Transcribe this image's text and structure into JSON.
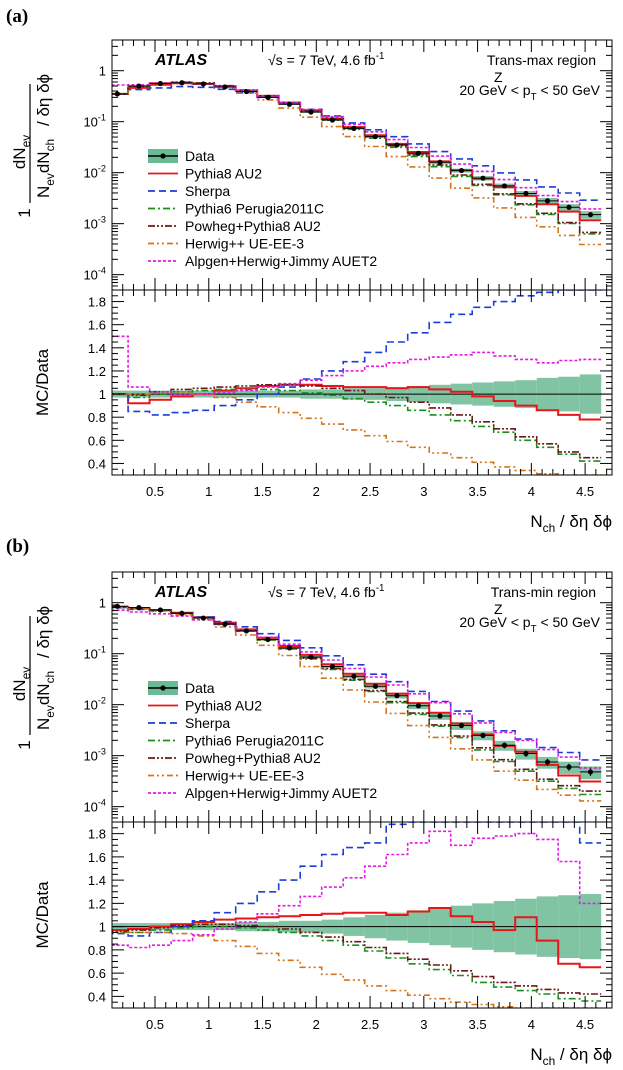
{
  "chart_data": [
    {
      "type": "line",
      "panel": "(a)",
      "experiment": "ATLAS",
      "energy_label": "√s = 7 TeV, 4.6 fb",
      "energy_sup": "-1",
      "region": "Trans-max region",
      "pt_range": "20 GeV < p",
      "pt_range_sup": "Z",
      "pt_range_sub": "T",
      "pt_range_tail": " < 50 GeV",
      "xlabel": "N",
      "xlabel_sub": "ch",
      "xlabel_tail": " / δη δϕ",
      "ylabel_top": "dN",
      "ylabel_top_sub": "ev",
      "ylabel_bottom": "N",
      "ylabel_bottom_sub": "ev",
      "ylabel_bottom_mid": "dN",
      "ylabel_bottom_sub2": "ch",
      "ylabel_bottom_tail": " / δη δϕ",
      "ylabel_one": "1",
      "ratio_ylabel": "MC/Data",
      "xlim": [
        0.1,
        4.75
      ],
      "ylim": [
        5e-05,
        4
      ],
      "yscale": "log",
      "ratio_ylim": [
        0.3,
        1.9
      ],
      "x_ticks": [
        "0.5",
        "1",
        "1.5",
        "2",
        "2.5",
        "3",
        "3.5",
        "4",
        "4.5"
      ],
      "y_ticks": [
        "10",
        "10",
        "10",
        "10",
        "1"
      ],
      "y_tick_sups": [
        "-4",
        "-3",
        "-2",
        "-1",
        ""
      ],
      "ratio_ticks": [
        "0.4",
        "0.6",
        "0.8",
        "1",
        "1.2",
        "1.4",
        "1.6",
        "1.8"
      ],
      "legend_position": "center-left",
      "x": [
        0.15,
        0.35,
        0.55,
        0.75,
        0.95,
        1.15,
        1.35,
        1.55,
        1.75,
        1.95,
        2.15,
        2.35,
        2.55,
        2.75,
        2.95,
        3.15,
        3.35,
        3.55,
        3.75,
        3.95,
        4.15,
        4.35,
        4.55
      ],
      "series": [
        {
          "name": "Data",
          "color": "#000000",
          "band": "#6aba94",
          "values": [
            0.35,
            0.5,
            0.56,
            0.58,
            0.55,
            0.48,
            0.39,
            0.3,
            0.22,
            0.155,
            0.108,
            0.074,
            0.051,
            0.035,
            0.024,
            0.016,
            0.011,
            0.0078,
            0.0055,
            0.0039,
            0.0028,
            0.0021,
            0.0015
          ],
          "band_rel": [
            0.03,
            0.03,
            0.03,
            0.03,
            0.03,
            0.03,
            0.03,
            0.03,
            0.03,
            0.04,
            0.04,
            0.05,
            0.05,
            0.06,
            0.07,
            0.08,
            0.09,
            0.1,
            0.11,
            0.12,
            0.14,
            0.15,
            0.17
          ]
        },
        {
          "name": "Pythia8 AU2",
          "color": "#e8161a",
          "dash": "",
          "ratio": [
            1.0,
            0.92,
            0.95,
            0.98,
            1.0,
            1.03,
            1.05,
            1.07,
            1.08,
            1.08,
            1.07,
            1.06,
            1.06,
            1.05,
            1.06,
            1.04,
            1.02,
            0.98,
            0.94,
            0.9,
            0.86,
            0.82,
            0.78
          ]
        },
        {
          "name": "Sherpa",
          "color": "#1a3fd6",
          "dash": "7,4",
          "ratio": [
            1.0,
            0.85,
            0.82,
            0.84,
            0.86,
            0.9,
            0.95,
            1.0,
            1.06,
            1.13,
            1.2,
            1.28,
            1.36,
            1.45,
            1.53,
            1.62,
            1.69,
            1.75,
            1.8,
            1.85,
            1.88,
            1.9,
            1.92
          ]
        },
        {
          "name": "Pythia6 Perugia2011C",
          "color": "#1a8f1a",
          "dash": "7,3,2,3",
          "ratio": [
            1.0,
            0.97,
            1.0,
            1.02,
            1.03,
            1.04,
            1.04,
            1.04,
            1.03,
            1.01,
            0.99,
            0.96,
            0.93,
            0.9,
            0.86,
            0.82,
            0.77,
            0.72,
            0.67,
            0.6,
            0.54,
            0.48,
            0.42
          ]
        },
        {
          "name": "Powheg+Pythia8 AU2",
          "color": "#6b1a1a",
          "dash": "7,2,2,2,2,2",
          "ratio": [
            1.0,
            0.99,
            1.02,
            1.04,
            1.05,
            1.06,
            1.07,
            1.08,
            1.08,
            1.07,
            1.05,
            1.03,
            1.0,
            0.97,
            0.93,
            0.88,
            0.82,
            0.76,
            0.7,
            0.63,
            0.57,
            0.5,
            0.45
          ]
        },
        {
          "name": "Herwig++ UE-EE-3",
          "color": "#d4741a",
          "dash": "6,3,2,3,2,3",
          "ratio": [
            1.0,
            1.0,
            1.02,
            1.02,
            1.0,
            0.97,
            0.93,
            0.89,
            0.84,
            0.79,
            0.74,
            0.69,
            0.64,
            0.59,
            0.54,
            0.49,
            0.45,
            0.41,
            0.37,
            0.34,
            0.31,
            0.28,
            0.26
          ]
        },
        {
          "name": "Alpgen+Herwig+Jimmy AUET2",
          "color": "#e61ae6",
          "dash": "3,2",
          "ratio": [
            1.5,
            1.06,
            1.02,
            1.0,
            1.0,
            1.01,
            1.03,
            1.06,
            1.09,
            1.12,
            1.16,
            1.2,
            1.24,
            1.27,
            1.3,
            1.32,
            1.34,
            1.36,
            1.33,
            1.3,
            1.27,
            1.29,
            1.3
          ]
        }
      ]
    },
    {
      "type": "line",
      "panel": "(b)",
      "experiment": "ATLAS",
      "energy_label": "√s = 7 TeV, 4.6 fb",
      "energy_sup": "-1",
      "region": "Trans-min region",
      "pt_range": "20 GeV < p",
      "pt_range_sup": "Z",
      "pt_range_sub": "T",
      "pt_range_tail": " < 50 GeV",
      "xlabel": "N",
      "xlabel_sub": "ch",
      "xlabel_tail": " / δη δϕ",
      "ylabel_top": "dN",
      "ylabel_top_sub": "ev",
      "ylabel_bottom": "N",
      "ylabel_bottom_sub": "ev",
      "ylabel_bottom_mid": "dN",
      "ylabel_bottom_sub2": "ch",
      "ylabel_bottom_tail": " / δη δϕ",
      "ylabel_one": "1",
      "ratio_ylabel": "MC/Data",
      "xlim": [
        0.1,
        4.75
      ],
      "ylim": [
        5e-05,
        4
      ],
      "yscale": "log",
      "ratio_ylim": [
        0.3,
        1.9
      ],
      "x_ticks": [
        "0.5",
        "1",
        "1.5",
        "2",
        "2.5",
        "3",
        "3.5",
        "4",
        "4.5"
      ],
      "y_ticks": [
        "10",
        "10",
        "10",
        "10",
        "1"
      ],
      "y_tick_sups": [
        "-4",
        "-3",
        "-2",
        "-1",
        ""
      ],
      "ratio_ticks": [
        "0.4",
        "0.6",
        "0.8",
        "1",
        "1.2",
        "1.4",
        "1.6",
        "1.8"
      ],
      "legend_position": "center-left",
      "x": [
        0.15,
        0.35,
        0.55,
        0.75,
        0.95,
        1.15,
        1.35,
        1.55,
        1.75,
        1.95,
        2.15,
        2.35,
        2.55,
        2.75,
        2.95,
        3.15,
        3.35,
        3.55,
        3.75,
        3.95,
        4.15,
        4.35,
        4.55
      ],
      "series": [
        {
          "name": "Data",
          "color": "#000000",
          "band": "#6aba94",
          "values": [
            0.85,
            0.8,
            0.72,
            0.62,
            0.5,
            0.38,
            0.28,
            0.19,
            0.13,
            0.086,
            0.056,
            0.036,
            0.023,
            0.015,
            0.0095,
            0.006,
            0.0039,
            0.0025,
            0.0016,
            0.0011,
            0.00075,
            0.0006,
            0.00048
          ],
          "band_rel": [
            0.03,
            0.03,
            0.03,
            0.03,
            0.03,
            0.03,
            0.04,
            0.04,
            0.05,
            0.05,
            0.06,
            0.08,
            0.1,
            0.12,
            0.14,
            0.16,
            0.18,
            0.2,
            0.22,
            0.24,
            0.26,
            0.27,
            0.28
          ]
        },
        {
          "name": "Pythia8 AU2",
          "color": "#e8161a",
          "dash": "",
          "ratio": [
            0.97,
            0.98,
            1.0,
            1.02,
            1.04,
            1.06,
            1.07,
            1.08,
            1.09,
            1.1,
            1.11,
            1.12,
            1.12,
            1.1,
            1.13,
            1.16,
            1.09,
            1.04,
            0.97,
            1.08,
            0.88,
            0.68,
            0.65
          ]
        },
        {
          "name": "Sherpa",
          "color": "#1a3fd6",
          "dash": "7,4",
          "ratio": [
            0.94,
            0.92,
            0.95,
            1.0,
            1.05,
            1.12,
            1.2,
            1.3,
            1.4,
            1.52,
            1.62,
            1.68,
            1.72,
            1.88,
            1.92,
            1.92,
            1.92,
            1.92,
            1.92,
            1.92,
            1.92,
            1.92,
            1.72
          ]
        },
        {
          "name": "Pythia6 Perugia2011C",
          "color": "#1a8f1a",
          "dash": "7,3,2,3",
          "ratio": [
            0.95,
            0.95,
            0.97,
            0.99,
            1.0,
            1.0,
            0.99,
            0.97,
            0.95,
            0.92,
            0.88,
            0.84,
            0.79,
            0.73,
            0.68,
            0.63,
            0.58,
            0.52,
            0.48,
            0.45,
            0.42,
            0.38,
            0.36
          ]
        },
        {
          "name": "Powheg+Pythia8 AU2",
          "color": "#6b1a1a",
          "dash": "7,2,2,2,2,2",
          "ratio": [
            0.96,
            0.97,
            0.99,
            1.01,
            1.02,
            1.02,
            1.01,
            1.0,
            0.98,
            0.95,
            0.91,
            0.87,
            0.82,
            0.77,
            0.72,
            0.67,
            0.62,
            0.57,
            0.52,
            0.49,
            0.46,
            0.43,
            0.42
          ]
        },
        {
          "name": "Herwig++ UE-EE-3",
          "color": "#d4741a",
          "dash": "6,3,2,3,2,3",
          "ratio": [
            0.95,
            0.95,
            0.95,
            0.94,
            0.92,
            0.88,
            0.83,
            0.77,
            0.71,
            0.65,
            0.59,
            0.54,
            0.49,
            0.45,
            0.41,
            0.38,
            0.35,
            0.33,
            0.31,
            0.3,
            0.29,
            0.28,
            0.27
          ]
        },
        {
          "name": "Alpgen+Herwig+Jimmy AUET2",
          "color": "#e61ae6",
          "dash": "3,2",
          "ratio": [
            0.84,
            0.82,
            0.84,
            0.88,
            0.93,
            0.98,
            1.04,
            1.11,
            1.18,
            1.26,
            1.34,
            1.42,
            1.52,
            1.62,
            1.72,
            1.82,
            1.7,
            1.76,
            1.78,
            1.8,
            1.75,
            1.56,
            1.2
          ]
        }
      ]
    }
  ]
}
